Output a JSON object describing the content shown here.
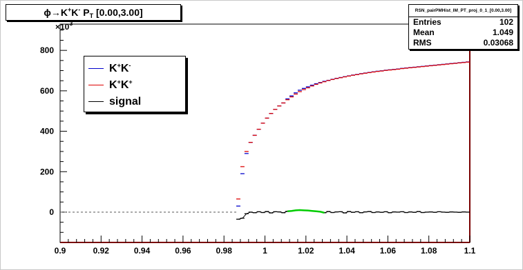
{
  "title": {
    "phi": "ϕ→K",
    "sup1": "+",
    "mid": "K",
    "sup2": "-",
    "p": " P",
    "sub": "T",
    "range": " [0.00,3.00]"
  },
  "stats": {
    "name": "RSN_pairPMHist_IM_PT_proj_0_1_[0.00,3.00]",
    "rows": [
      {
        "label": "Entries",
        "value": "102"
      },
      {
        "label": "Mean",
        "value": "1.049"
      },
      {
        "label": "RMS",
        "value": "0.03068"
      }
    ]
  },
  "y_exponent": {
    "base": "×10",
    "power": "3"
  },
  "legend": [
    {
      "k": "K",
      "s1": "+",
      "k2": "K",
      "s2": "-",
      "color": "#0000cc"
    },
    {
      "k": "K",
      "s1": "+",
      "k2": "K",
      "s2": "+",
      "color": "#dd0000"
    },
    {
      "label": "signal",
      "color": "#000000"
    }
  ],
  "chart_data": {
    "type": "line",
    "title": "ϕ→K+K- PT [0.00,3.00]",
    "xlabel": "",
    "ylabel": "",
    "xlim": [
      0.9,
      1.1
    ],
    "ylim": [
      -150,
      930
    ],
    "y_scale_note": "×10^3",
    "x_ticks": [
      "0.9",
      "0.92",
      "0.94",
      "0.96",
      "0.98",
      "1",
      "1.02",
      "1.04",
      "1.06",
      "1.08",
      "1.1"
    ],
    "y_ticks": [
      "0",
      "200",
      "400",
      "600",
      "800"
    ],
    "x_tick_values": [
      0.9,
      0.92,
      0.94,
      0.96,
      0.98,
      1.0,
      1.02,
      1.04,
      1.06,
      1.08,
      1.1
    ],
    "y_tick_values": [
      0,
      200,
      400,
      600,
      800
    ],
    "series": [
      {
        "name": "K+K-",
        "color": "#0000cc",
        "x": [
          0.987,
          0.989,
          0.991,
          0.993,
          0.995,
          0.997,
          0.999,
          1.001,
          1.003,
          1.005,
          1.007,
          1.009,
          1.011,
          1.013,
          1.015,
          1.017,
          1.019,
          1.021,
          1.023,
          1.025,
          1.027,
          1.029,
          1.031,
          1.033,
          1.035,
          1.037,
          1.039,
          1.041,
          1.043,
          1.045,
          1.047,
          1.049,
          1.051,
          1.053,
          1.055,
          1.057,
          1.059,
          1.061,
          1.063,
          1.065,
          1.067,
          1.069,
          1.071,
          1.073,
          1.075,
          1.077,
          1.079,
          1.081,
          1.083,
          1.085,
          1.087,
          1.089,
          1.091,
          1.093,
          1.095,
          1.097,
          1.099
        ],
        "y": [
          30,
          190,
          290,
          345,
          380,
          410,
          440,
          465,
          488,
          508,
          525,
          540,
          560,
          575,
          590,
          603,
          612,
          620,
          628,
          635,
          641,
          647,
          652,
          657,
          662,
          666,
          670,
          674,
          678,
          681,
          685,
          688,
          691,
          694,
          697,
          699,
          702,
          704,
          706,
          708,
          711,
          713,
          715,
          717,
          719,
          721,
          723,
          725,
          727,
          729,
          731,
          733,
          735,
          737,
          739,
          741,
          743
        ]
      },
      {
        "name": "K+K+",
        "color": "#dd0000",
        "x": [
          0.987,
          0.989,
          0.991,
          0.993,
          0.995,
          0.997,
          0.999,
          1.001,
          1.003,
          1.005,
          1.007,
          1.009,
          1.011,
          1.013,
          1.015,
          1.017,
          1.019,
          1.021,
          1.023,
          1.025,
          1.027,
          1.029,
          1.031,
          1.033,
          1.035,
          1.037,
          1.039,
          1.041,
          1.043,
          1.045,
          1.047,
          1.049,
          1.051,
          1.053,
          1.055,
          1.057,
          1.059,
          1.061,
          1.063,
          1.065,
          1.067,
          1.069,
          1.071,
          1.073,
          1.075,
          1.077,
          1.079,
          1.081,
          1.083,
          1.085,
          1.087,
          1.089,
          1.091,
          1.093,
          1.095,
          1.097,
          1.099
        ],
        "y": [
          65,
          225,
          300,
          345,
          380,
          410,
          440,
          465,
          488,
          508,
          525,
          540,
          556,
          570,
          584,
          596,
          606,
          615,
          624,
          632,
          639,
          645,
          651,
          656,
          661,
          665,
          669,
          673,
          677,
          680,
          684,
          687,
          690,
          693,
          696,
          698,
          701,
          703,
          705,
          707,
          710,
          712,
          714,
          716,
          718,
          720,
          722,
          724,
          726,
          728,
          730,
          732,
          734,
          736,
          738,
          740,
          742
        ]
      },
      {
        "name": "signal",
        "color": "#000000",
        "x": [
          0.987,
          0.989,
          0.991,
          0.993,
          0.995,
          0.997,
          0.999,
          1.001,
          1.003,
          1.005,
          1.007,
          1.009,
          1.011,
          1.013,
          1.015,
          1.017,
          1.019,
          1.021,
          1.023,
          1.025,
          1.027,
          1.029,
          1.031,
          1.033,
          1.035,
          1.037,
          1.039,
          1.041,
          1.043,
          1.045,
          1.047,
          1.049,
          1.051,
          1.053,
          1.055,
          1.057,
          1.059,
          1.061,
          1.063,
          1.065,
          1.067,
          1.069,
          1.071,
          1.073,
          1.075,
          1.077,
          1.079,
          1.081,
          1.083,
          1.085,
          1.087,
          1.089,
          1.091,
          1.093,
          1.095,
          1.097,
          1.099
        ],
        "y": [
          -35,
          -30,
          -8,
          0,
          -3,
          2,
          -2,
          3,
          -4,
          2,
          1,
          -3,
          4,
          6,
          9,
          10,
          9,
          8,
          6,
          4,
          2,
          -3,
          3,
          -2,
          1,
          2,
          -4,
          3,
          -1,
          2,
          -3,
          1,
          3,
          -2,
          1,
          -1,
          2,
          -3,
          1,
          0,
          2,
          -2,
          1,
          -1,
          3,
          -2,
          0,
          1,
          -1,
          2,
          0,
          -1,
          1,
          0,
          -1,
          1,
          0
        ]
      }
    ],
    "signal_highlight": {
      "color": "#00cc00",
      "x_range": [
        1.011,
        1.029
      ]
    },
    "zero_line": {
      "style": "dashed",
      "from_x": 0.9,
      "to_x": 0.987
    }
  }
}
